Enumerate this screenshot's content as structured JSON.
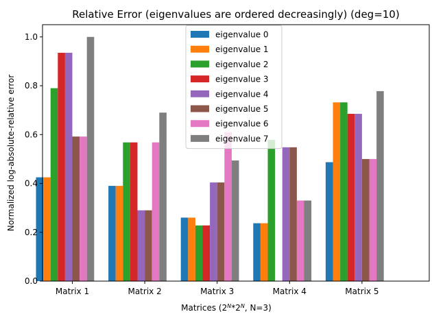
{
  "chart_data": {
    "type": "bar",
    "title": "Relative Error (eigenvalues are ordered decreasingly) (deg=10)",
    "xlabel_prefix": "Matrices (2",
    "xlabel_sup1": "N",
    "xlabel_mid": "*2",
    "xlabel_sup2": "N",
    "xlabel_suffix": ", N=3)",
    "ylabel": "Normalized log-absolute-relative error",
    "categories": [
      "Matrix 1",
      "Matrix 2",
      "Matrix 3",
      "Matrix 4",
      "Matrix 5"
    ],
    "ylim": [
      0,
      1.05
    ],
    "yticks": [
      0.0,
      0.2,
      0.4,
      0.6,
      0.8,
      1.0
    ],
    "ytick_labels": [
      "0.0",
      "0.2",
      "0.4",
      "0.6",
      "0.8",
      "1.0"
    ],
    "grid": false,
    "legend_position": "top-center",
    "series": [
      {
        "name": "eigenvalue 0",
        "color": "#1f77b4",
        "values": [
          0.425,
          0.39,
          0.26,
          0.237,
          0.487
        ]
      },
      {
        "name": "eigenvalue 1",
        "color": "#ff7f0e",
        "values": [
          0.425,
          0.39,
          0.26,
          0.237,
          0.732
        ]
      },
      {
        "name": "eigenvalue 2",
        "color": "#2ca02c",
        "values": [
          0.79,
          0.568,
          0.228,
          0.578,
          0.732
        ]
      },
      {
        "name": "eigenvalue 3",
        "color": "#d62728",
        "values": [
          0.935,
          0.568,
          0.228,
          0.0,
          0.685
        ]
      },
      {
        "name": "eigenvalue 4",
        "color": "#9467bd",
        "values": [
          0.935,
          0.29,
          0.404,
          0.548,
          0.685
        ]
      },
      {
        "name": "eigenvalue 5",
        "color": "#8c564b",
        "values": [
          0.592,
          0.29,
          0.404,
          0.548,
          0.5
        ]
      },
      {
        "name": "eigenvalue 6",
        "color": "#e377c2",
        "values": [
          0.592,
          0.568,
          0.61,
          0.33,
          0.5
        ]
      },
      {
        "name": "eigenvalue 7",
        "color": "#7f7f7f",
        "values": [
          1.0,
          0.69,
          0.494,
          0.33,
          0.778
        ]
      }
    ]
  }
}
